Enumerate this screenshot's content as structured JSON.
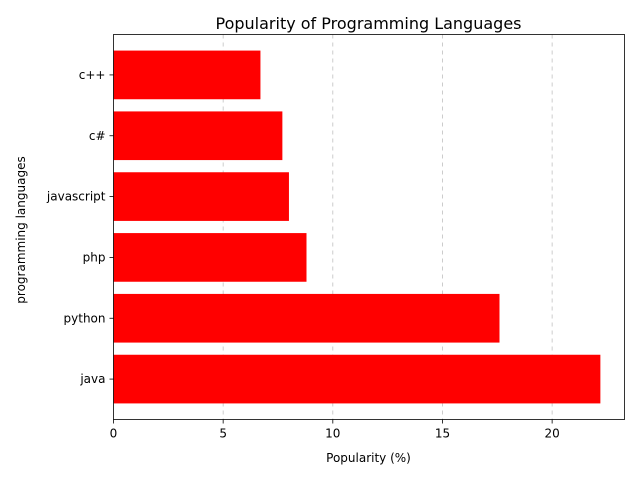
{
  "chart_data": {
    "type": "bar",
    "orientation": "horizontal",
    "title": "Popularity of Programming Languages",
    "xlabel": "Popularity (%)",
    "ylabel": "programming languages",
    "categories": [
      "java",
      "python",
      "php",
      "javascript",
      "c#",
      "c++"
    ],
    "values": [
      22.2,
      17.6,
      8.8,
      8.0,
      7.7,
      6.7
    ],
    "xlim": [
      0,
      23.3
    ],
    "xticks": [
      0,
      5,
      10,
      15,
      20
    ],
    "grid": "x-dashed",
    "bar_color": "#ff0000"
  }
}
